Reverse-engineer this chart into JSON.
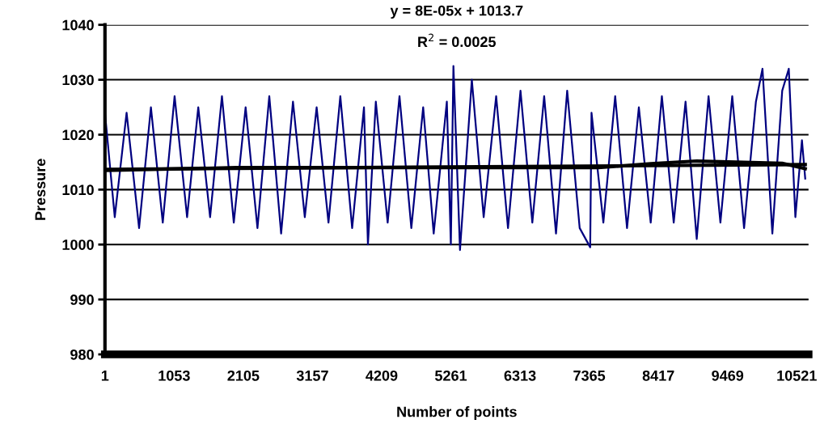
{
  "chart_data": {
    "type": "line",
    "xlabel": "Number of points",
    "ylabel": "Pressure",
    "annotations": [
      "y = 8E-05x + 1013.7",
      "R$^{2}$ = 0.0025"
    ],
    "xlim": [
      1,
      10700
    ],
    "xticks": [
      1,
      1053,
      2105,
      3157,
      4209,
      5261,
      6313,
      7365,
      8417,
      9469,
      10521
    ],
    "ylim": [
      980,
      1040
    ],
    "yticks": [
      980,
      990,
      1000,
      1010,
      1020,
      1030,
      1040
    ],
    "grid": "y",
    "legend": false,
    "marker": "none",
    "line_style": "solid",
    "series": [
      {
        "color": "#000080",
        "x": [
          1,
          150,
          330,
          520,
          700,
          880,
          1060,
          1250,
          1420,
          1600,
          1780,
          1960,
          2140,
          2320,
          2500,
          2680,
          2860,
          3040,
          3220,
          3400,
          3580,
          3760,
          3940,
          4000,
          4120,
          4300,
          4480,
          4660,
          4840,
          5000,
          5200,
          5261,
          5300,
          5400,
          5580,
          5760,
          5950,
          6130,
          6320,
          6500,
          6680,
          6860,
          7030,
          7220,
          7380,
          7400,
          7580,
          7760,
          7940,
          8120,
          8300,
          8470,
          8650,
          8830,
          9000,
          9180,
          9360,
          9540,
          9720,
          9900,
          10000,
          10150,
          10300,
          10400,
          10500,
          10600,
          10650
        ],
        "values": [
          1024,
          1005,
          1024,
          1003,
          1025,
          1004,
          1027,
          1005,
          1025,
          1005,
          1027,
          1004,
          1025,
          1003,
          1027,
          1002,
          1026,
          1005,
          1025,
          1004,
          1027,
          1003,
          1025,
          1000,
          1026,
          1004,
          1027,
          1003,
          1025,
          1002,
          1026,
          1000,
          1032.5,
          999,
          1030,
          1005,
          1027,
          1003,
          1028,
          1004,
          1027,
          1002,
          1028,
          1003,
          999.5,
          1024,
          1004,
          1027,
          1003,
          1025,
          1004,
          1027,
          1004,
          1026,
          1001,
          1027,
          1004,
          1027,
          1003,
          1026,
          1032,
          1002,
          1028,
          1032,
          1005,
          1019,
          1012
        ]
      },
      {
        "color": "#000000",
        "x": [
          1,
          2000,
          5000,
          7500,
          8300,
          9000,
          9600,
          10300,
          10650
        ],
        "values": [
          1013.5,
          1014,
          1014,
          1014,
          1014.7,
          1015.2,
          1015,
          1014.8,
          1013.8
        ]
      },
      {
        "color": "#000000",
        "x": [
          1,
          10650
        ],
        "values": [
          1013.7,
          1014.55
        ]
      }
    ]
  }
}
